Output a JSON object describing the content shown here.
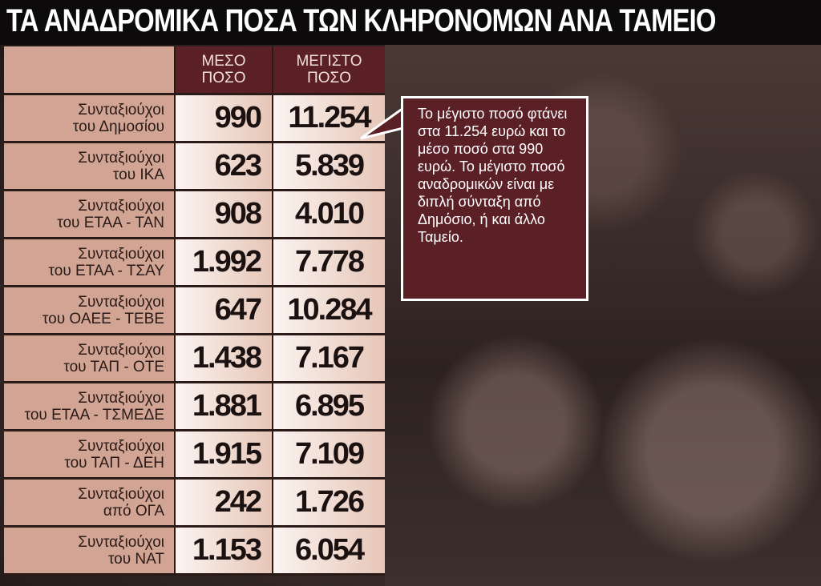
{
  "title": "ΤΑ ΑΝΑΔΡΟΜΙΚΑ ΠΟΣΑ ΤΩΝ ΚΛΗΡΟΝΟΜΩΝ ΑΝΑ ΤΑΜΕΙΟ",
  "colors": {
    "header": "#5b1f26",
    "label_bg": "#d1a493",
    "title_bg": "#0c0a0a"
  },
  "chart_data": {
    "type": "table",
    "title": "ΤΑ ΑΝΑΔΡΟΜΙΚΑ ΠΟΣΑ ΤΩΝ ΚΛΗΡΟΝΟΜΩΝ ΑΝΑ ΤΑΜΕΙΟ",
    "columns": [
      "ΜΕΣΟ ΠΟΣΟ",
      "ΜΕΓΙΣΤΟ ΠΟΣΟ"
    ],
    "columns_lines": [
      [
        "ΜΕΣΟ",
        "ΠΟΣΟ"
      ],
      [
        "ΜΕΓΙΣΤΟ",
        "ΠΟΣΟ"
      ]
    ],
    "rows": [
      {
        "l1": "Συνταξιούχοι",
        "l2": "του Δημοσίου",
        "mean": "990",
        "max": "11.254"
      },
      {
        "l1": "Συνταξιούχοι",
        "l2": "του ΙΚΑ",
        "mean": "623",
        "max": "5.839"
      },
      {
        "l1": "Συνταξιούχοι",
        "l2": "του ΕΤΑΑ - ΤΑΝ",
        "mean": "908",
        "max": "4.010"
      },
      {
        "l1": "Συνταξιούχοι",
        "l2": "του ΕΤΑΑ - ΤΣΑΥ",
        "mean": "1.992",
        "max": "7.778"
      },
      {
        "l1": "Συνταξιούχοι",
        "l2": "του ΟΑΕΕ - ΤΕΒΕ",
        "mean": "647",
        "max": "10.284"
      },
      {
        "l1": "Συνταξιούχοι",
        "l2": "του ΤΑΠ - ΟΤΕ",
        "mean": "1.438",
        "max": "7.167"
      },
      {
        "l1": "Συνταξιούχοι",
        "l2": "του ΕΤΑΑ - ΤΣΜΕΔΕ",
        "mean": "1.881",
        "max": "6.895"
      },
      {
        "l1": "Συνταξιούχοι",
        "l2": "του ΤΑΠ - ΔΕΗ",
        "mean": "1.915",
        "max": "7.109"
      },
      {
        "l1": "Συνταξιούχοι",
        "l2": "από ΟΓΑ",
        "mean": "242",
        "max": "1.726"
      },
      {
        "l1": "Συνταξιούχοι",
        "l2": "του ΝΑΤ",
        "mean": "1.153",
        "max": "6.054"
      }
    ]
  },
  "callout": "Το μέγιστο ποσό φτάνει στα 11.254 ευρώ και το μέσο ποσό στα 990 ευρώ. Το μέγιστο ποσό αναδρομικών είναι με διπλή σύνταξη από Δημόσιο, ή και άλλο Ταμείο."
}
